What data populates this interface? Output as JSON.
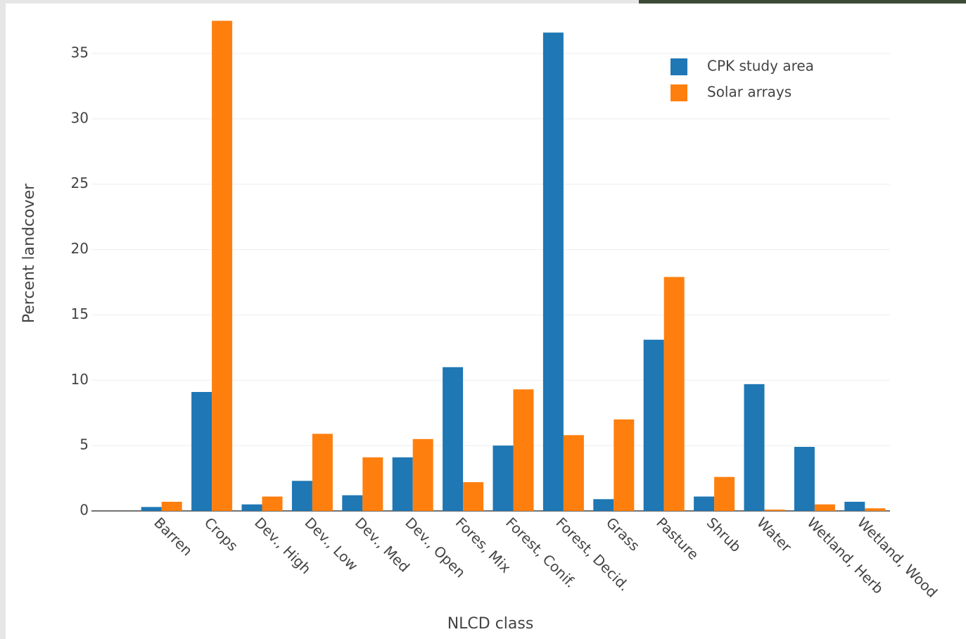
{
  "chart_data": {
    "type": "bar",
    "x_label": "NLCD class",
    "y_label": "Percent landcover",
    "categories": [
      "Barren",
      "Crops",
      "Dev., High",
      "Dev., Low",
      "Dev., Med",
      "Dev., Open",
      "Fores, Mix",
      "Forest, Conif.",
      "Forest, Decid.",
      "Grass",
      "Pasture",
      "Shrub",
      "Water",
      "Wetland, Herb",
      "Wetland, Wood"
    ],
    "series": [
      {
        "name": "CPK study area",
        "color": "#1f77b4",
        "values": [
          0.3,
          9.1,
          0.5,
          2.3,
          1.2,
          4.1,
          11.0,
          5.0,
          36.6,
          0.9,
          13.1,
          1.1,
          9.7,
          4.9,
          0.7
        ]
      },
      {
        "name": "Solar arrays",
        "color": "#ff7f0e",
        "values": [
          0.7,
          37.5,
          1.1,
          5.9,
          4.1,
          5.5,
          2.2,
          9.3,
          5.8,
          7.0,
          17.9,
          2.6,
          0.1,
          0.5,
          0.2
        ]
      }
    ],
    "ylim": [
      0,
      38
    ],
    "yticks": [
      0,
      5,
      10,
      15,
      20,
      25,
      30,
      35
    ],
    "grid": true,
    "legend": "top-right"
  }
}
